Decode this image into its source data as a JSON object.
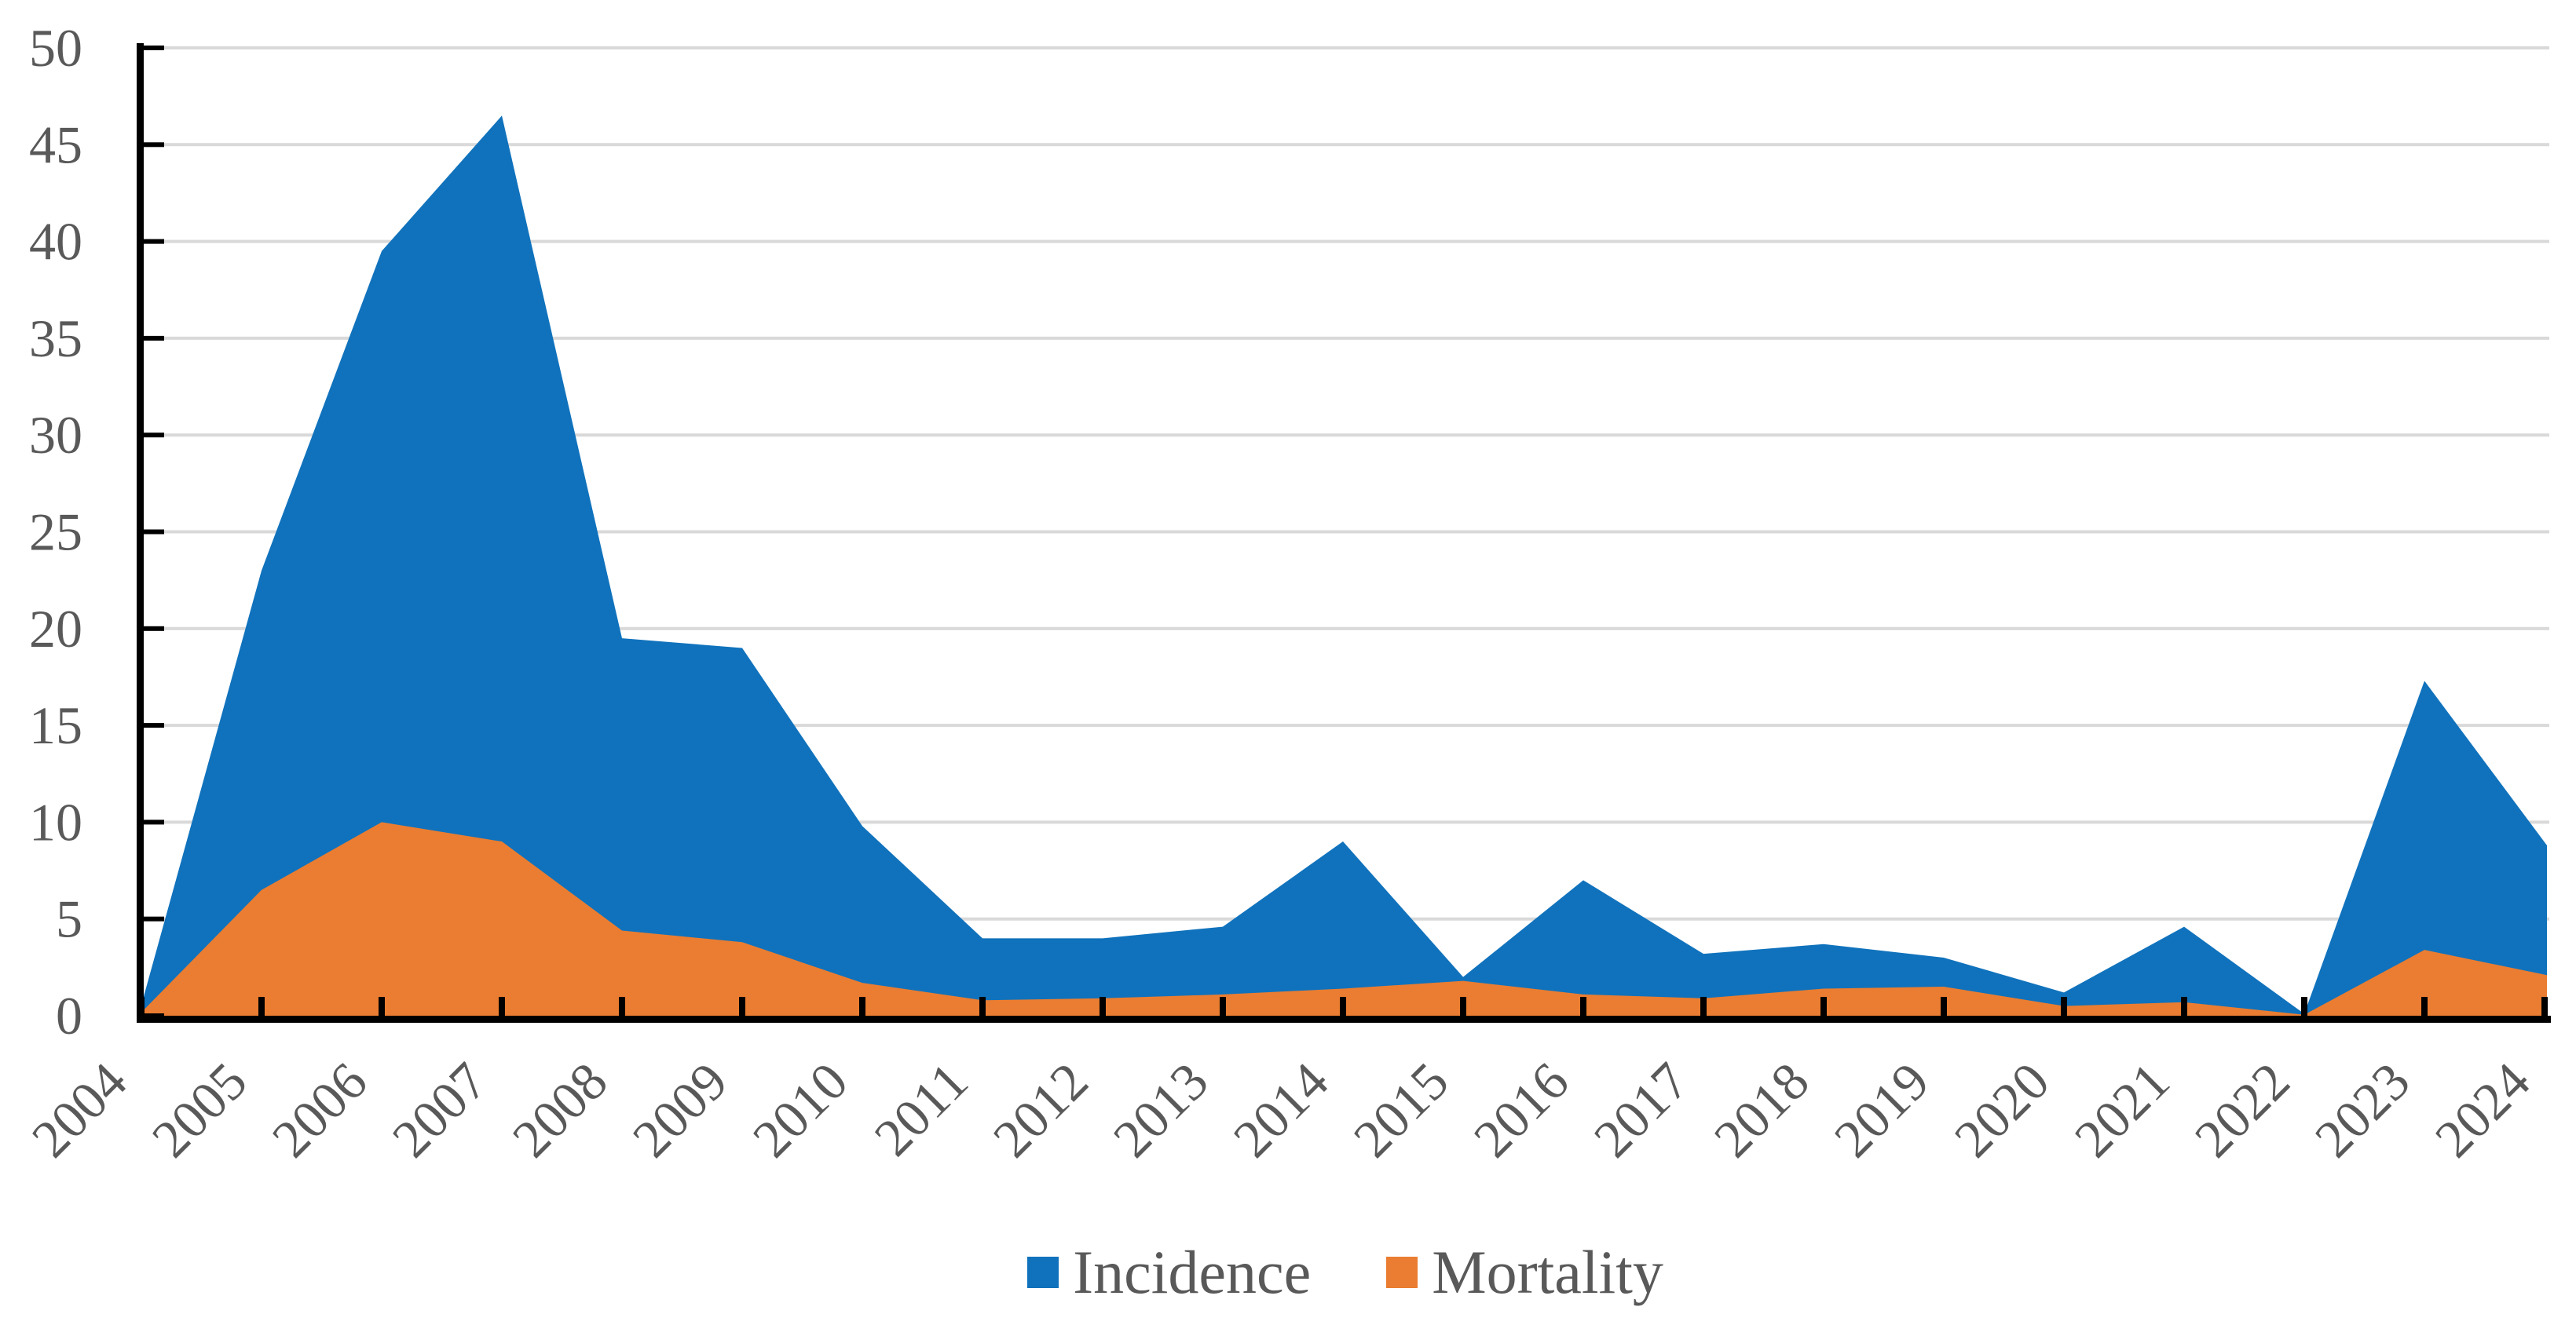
{
  "chart_data": {
    "type": "area",
    "title": "",
    "categories": [
      "2004",
      "2005",
      "2006",
      "2007",
      "2008",
      "2009",
      "2010",
      "2011",
      "2012",
      "2013",
      "2014",
      "2015",
      "2016",
      "2017",
      "2018",
      "2019",
      "2020",
      "2021",
      "2022",
      "2023",
      "2024"
    ],
    "series": [
      {
        "name": "Incidence",
        "color": "#1072BC",
        "values": [
          1,
          23,
          39.5,
          46.5,
          19.5,
          19,
          9.8,
          4,
          4,
          4.6,
          9,
          2,
          7,
          3.2,
          3.7,
          3,
          1.2,
          4.6,
          0.1,
          17.3,
          8.8
        ]
      },
      {
        "name": "Mortality",
        "color": "#EA7D31",
        "values": [
          0.3,
          6.5,
          10,
          9,
          4.4,
          3.8,
          1.7,
          0.8,
          0.9,
          1.1,
          1.4,
          1.8,
          1.1,
          0.9,
          1.4,
          1.5,
          0.5,
          0.7,
          0.05,
          3.4,
          2.1
        ]
      }
    ],
    "ylim": [
      0,
      50
    ],
    "ytick_step": 5,
    "ytick_labels": [
      "0",
      "5",
      "10",
      "15",
      "20",
      "25",
      "30",
      "35",
      "40",
      "45",
      "50"
    ],
    "xlabel": "",
    "ylabel": "",
    "grid": "horizontal",
    "legend_position": "bottom-center",
    "series_overlap": "overlay",
    "colors": {
      "gridline": "#D9D9D9",
      "axis_line": "#000000",
      "axis_text": "#595959"
    }
  }
}
